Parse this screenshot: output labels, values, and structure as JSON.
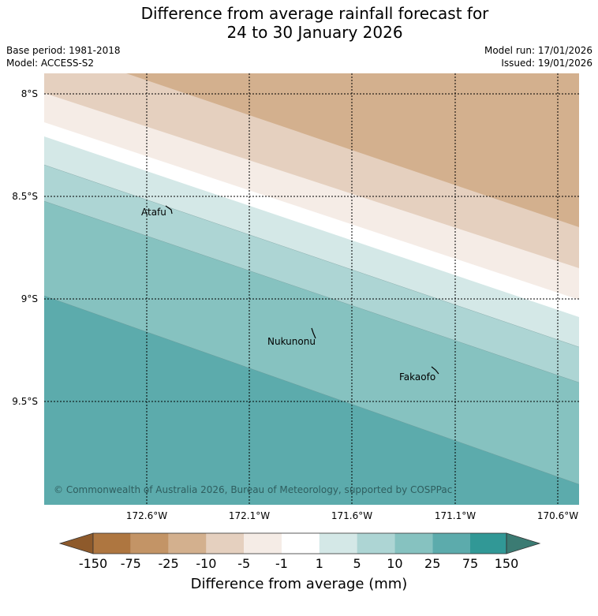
{
  "header": {
    "title_line1": "Difference from average rainfall forecast for",
    "title_line2": "24 to 30 January 2026",
    "base_period": "Base period: 1981-2018",
    "model": "Model: ACCESS-S2",
    "model_run": "Model run: 17/01/2026",
    "issued": "Issued: 19/01/2026"
  },
  "map": {
    "lat_labels": [
      "8°S",
      "8.5°S",
      "9°S",
      "9.5°S"
    ],
    "lon_labels": [
      "172.6°W",
      "172.1°W",
      "171.6°W",
      "171.1°W",
      "170.6°W"
    ],
    "places": [
      {
        "name": "Atafu"
      },
      {
        "name": "Nukunonu"
      },
      {
        "name": "Fakaofo"
      }
    ],
    "copyright": "© Commonwealth of Australia 2026, Bureau of Meteorology, supported by COSPPac"
  },
  "colorbar": {
    "title": "Difference from average (mm)",
    "labels": [
      "-150",
      "-75",
      "-25",
      "-10",
      "-5",
      "-1",
      "1",
      "5",
      "10",
      "25",
      "75",
      "150"
    ],
    "colors": [
      "#8e5a2b",
      "#ae7640",
      "#c39466",
      "#d3b08e",
      "#e5d0bf",
      "#f5ece6",
      "#ffffff",
      "#d4e8e7",
      "#add5d4",
      "#86c2c0",
      "#5cabac",
      "#319896",
      "#3b7b73"
    ]
  }
}
